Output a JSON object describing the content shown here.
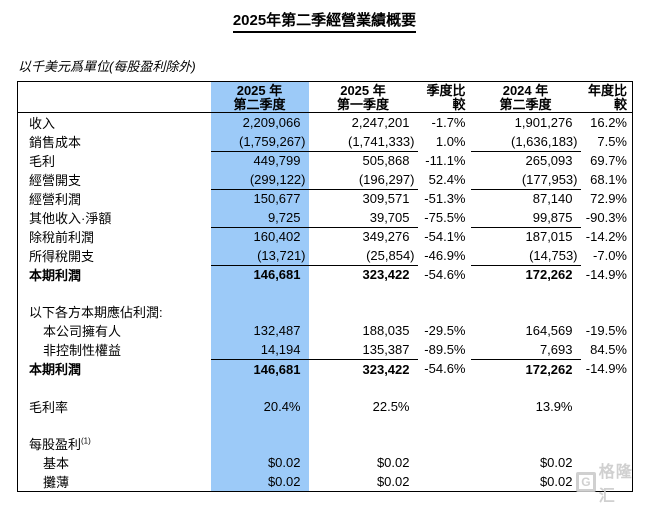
{
  "page": {
    "title": "2025年第二季經營業績概要",
    "unit_note": "以千美元爲單位(每股盈利除外)"
  },
  "watermark": {
    "icon": "G",
    "text": "格隆汇"
  },
  "table": {
    "highlight_color": "#9CCAF8",
    "columns": [
      {
        "id": "label",
        "header_line1": "",
        "header_line2": ""
      },
      {
        "id": "q2_2025",
        "header_line1": "2025 年",
        "header_line2": "第二季度",
        "highlight": true
      },
      {
        "id": "q1_2025",
        "header_line1": "2025 年",
        "header_line2": "第一季度"
      },
      {
        "id": "qoq",
        "header_line1": "季度比較",
        "header_line2": ""
      },
      {
        "id": "q2_2024",
        "header_line1": "2024 年",
        "header_line2": "第二季度"
      },
      {
        "id": "yoy",
        "header_line1": "年度比較",
        "header_line2": ""
      }
    ],
    "rows": [
      {
        "label": "收入",
        "values": [
          "2,209,066",
          "2,247,201",
          "-1.7%",
          "1,901,276",
          "16.2%"
        ]
      },
      {
        "label": "銷售成本",
        "values": [
          "(1,759,267)",
          "(1,741,333)",
          "1.0%",
          "(1,636,183)",
          "7.5%"
        ],
        "underline_cols": [
          0,
          1,
          3
        ]
      },
      {
        "label": "毛利",
        "values": [
          "449,799",
          "505,868",
          "-11.1%",
          "265,093",
          "69.7%"
        ]
      },
      {
        "label": "經營開支",
        "values": [
          "(299,122)",
          "(196,297)",
          "52.4%",
          "(177,953)",
          "68.1%"
        ],
        "underline_cols": [
          0,
          1,
          3
        ]
      },
      {
        "label": "經營利潤",
        "values": [
          "150,677",
          "309,571",
          "-51.3%",
          "87,140",
          "72.9%"
        ]
      },
      {
        "label": "其他收入·淨額",
        "values": [
          "9,725",
          "39,705",
          "-75.5%",
          "99,875",
          "-90.3%"
        ],
        "underline_cols": [
          0,
          1,
          3
        ]
      },
      {
        "label": "除稅前利潤",
        "values": [
          "160,402",
          "349,276",
          "-54.1%",
          "187,015",
          "-14.2%"
        ]
      },
      {
        "label": "所得稅開支",
        "values": [
          "(13,721)",
          "(25,854)",
          "-46.9%",
          "(14,753)",
          "-7.0%"
        ],
        "underline_cols": [
          0,
          1,
          3
        ]
      },
      {
        "label": "本期利潤",
        "bold": true,
        "bold_cols": [
          0,
          1,
          3
        ],
        "values": [
          "146,681",
          "323,422",
          "-54.6%",
          "172,262",
          "-14.9%"
        ]
      },
      {
        "label": "",
        "values": [
          "",
          "",
          "",
          "",
          ""
        ]
      },
      {
        "label": "以下各方本期應佔利潤:",
        "values": [
          "",
          "",
          "",
          "",
          ""
        ]
      },
      {
        "label": "本公司擁有人",
        "indent": true,
        "values": [
          "132,487",
          "188,035",
          "-29.5%",
          "164,569",
          "-19.5%"
        ]
      },
      {
        "label": "非控制性權益",
        "indent": true,
        "values": [
          "14,194",
          "135,387",
          "-89.5%",
          "7,693",
          "84.5%"
        ],
        "underline_cols": [
          0,
          1,
          3
        ]
      },
      {
        "label": "本期利潤",
        "bold": true,
        "bold_cols": [
          0,
          1,
          3
        ],
        "values": [
          "146,681",
          "323,422",
          "-54.6%",
          "172,262",
          "-14.9%"
        ]
      },
      {
        "label": "",
        "values": [
          "",
          "",
          "",
          "",
          ""
        ]
      },
      {
        "label": "毛利率",
        "values": [
          "20.4%",
          "22.5%",
          "",
          "13.9%",
          ""
        ]
      },
      {
        "label": "",
        "values": [
          "",
          "",
          "",
          "",
          ""
        ]
      },
      {
        "label": "每股盈利",
        "sup": "(1)",
        "values": [
          "",
          "",
          "",
          "",
          ""
        ]
      },
      {
        "label": "基本",
        "indent": true,
        "values": [
          "$0.02",
          "$0.02",
          "",
          "$0.02",
          ""
        ]
      },
      {
        "label": "攤薄",
        "indent": true,
        "values": [
          "$0.02",
          "$0.02",
          "",
          "$0.02",
          ""
        ]
      }
    ]
  }
}
